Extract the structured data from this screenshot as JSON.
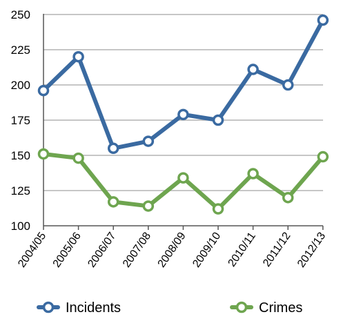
{
  "chart_data": {
    "type": "line",
    "categories": [
      "2004/05",
      "2005/06",
      "2006/07",
      "2007/08",
      "2008/09",
      "2009/10",
      "2010/11",
      "2011/12",
      "2012/13"
    ],
    "series": [
      {
        "name": "Incidents",
        "color": "#3a6aa1",
        "values": [
          196,
          220,
          155,
          160,
          179,
          175,
          211,
          200,
          246
        ]
      },
      {
        "name": "Crimes",
        "color": "#6ea54f",
        "values": [
          151,
          148,
          117,
          114,
          134,
          112,
          137,
          120,
          149
        ]
      }
    ],
    "yticks": [
      100,
      125,
      150,
      175,
      200,
      225,
      250
    ],
    "ylim": [
      100,
      250
    ],
    "grid": true,
    "legend": "bottom",
    "title": "",
    "xlabel": "",
    "ylabel": ""
  }
}
